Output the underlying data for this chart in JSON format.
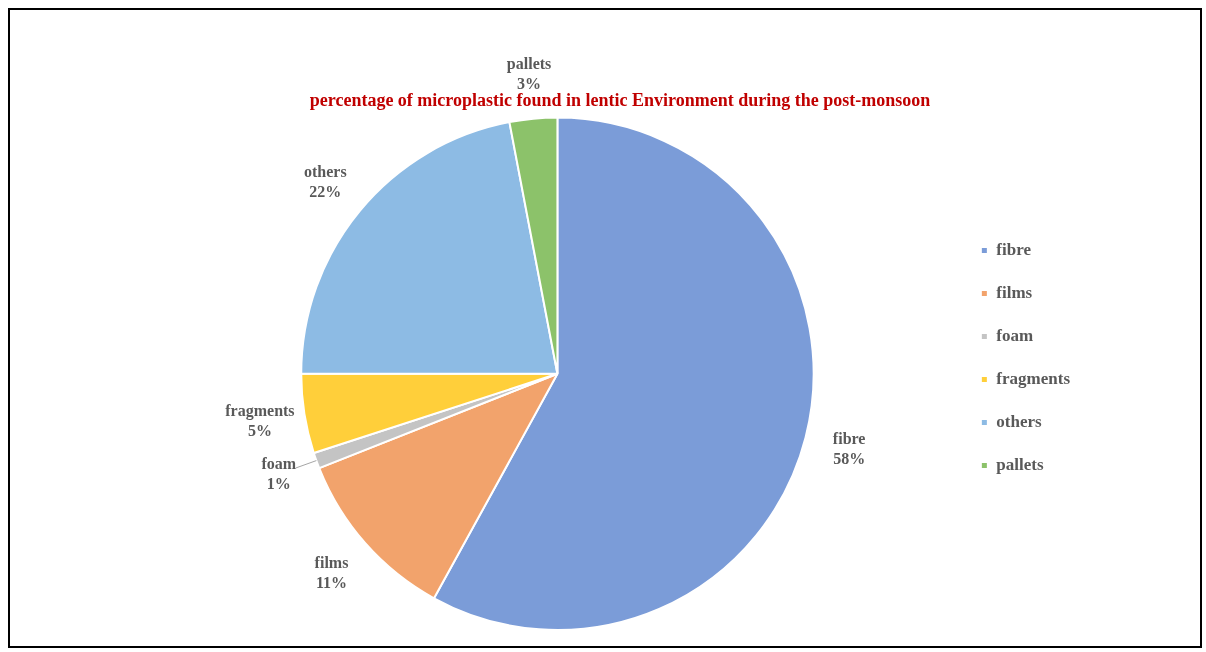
{
  "chart_data": {
    "type": "pie",
    "title": "percentage of microplastic found in lentic Environment during the post-monsoon",
    "categories": [
      "fibre",
      "films",
      "foam",
      "fragments",
      "others",
      "pallets"
    ],
    "values": [
      58,
      11,
      1,
      5,
      22,
      3
    ],
    "value_labels": [
      "58%",
      "11%",
      "1%",
      "5%",
      "22%",
      "3%"
    ],
    "colors": [
      "#7b9cd8",
      "#f2a36c",
      "#c4c4c4",
      "#ffcf3a",
      "#8dbbe4",
      "#8cc26a"
    ],
    "legend": "right"
  }
}
